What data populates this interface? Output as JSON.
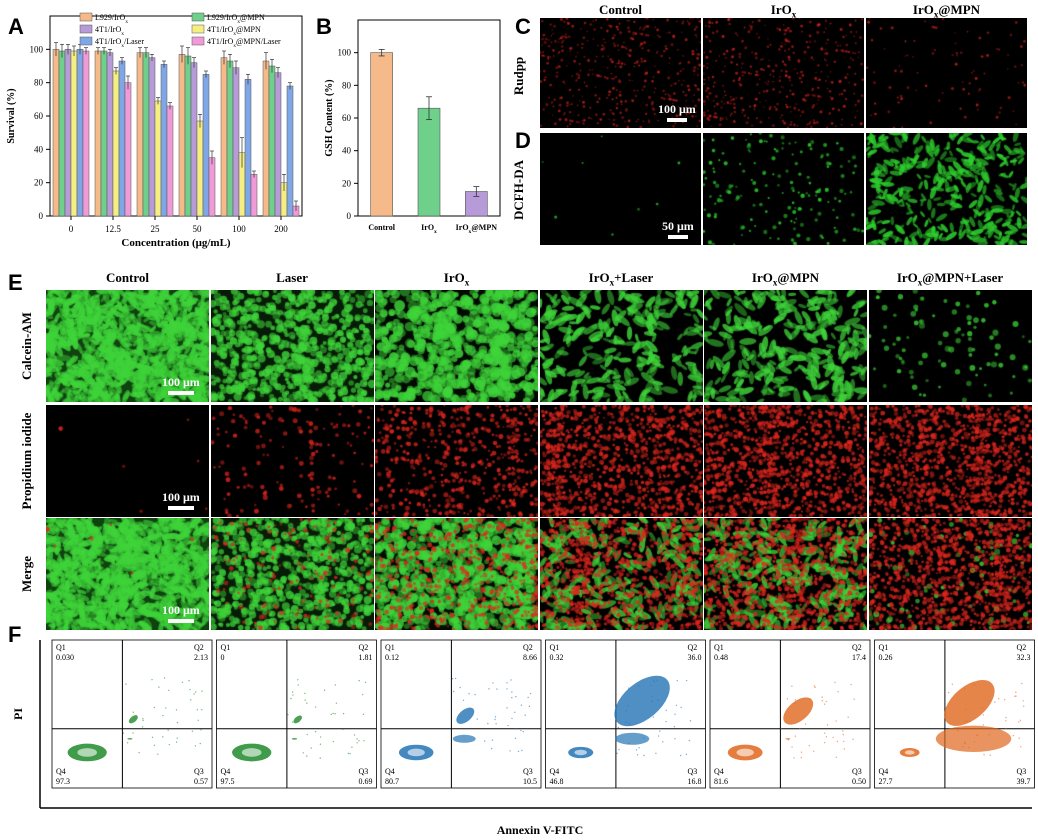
{
  "panels": {
    "A": "A",
    "B": "B",
    "C": "C",
    "D": "D",
    "E": "E",
    "F": "F"
  },
  "chart_data": [
    {
      "type": "bar",
      "panel": "A",
      "categories": [
        "0",
        "12.5",
        "25",
        "50",
        "100",
        "200"
      ],
      "xlabel": "Concentration (μg/mL)",
      "ylabel": "Survival (%)",
      "ylim": [
        0,
        120
      ],
      "yticks": [
        "0",
        "20",
        "40",
        "60",
        "80",
        "100"
      ],
      "series": [
        {
          "name": "L929/IrOx",
          "color": "#f5b98a",
          "values": [
            100,
            99,
            98,
            97,
            95,
            93
          ],
          "err": [
            4,
            2,
            3,
            5,
            4,
            5
          ]
        },
        {
          "name": "L929/IrOx@MPN",
          "color": "#6fd08c",
          "values": [
            99,
            99,
            98,
            96,
            93,
            90
          ],
          "err": [
            4,
            2,
            3,
            5,
            4,
            4
          ]
        },
        {
          "name": "4T1/IrOx",
          "color": "#b79ad8",
          "values": [
            100,
            98,
            95,
            92,
            89,
            86
          ],
          "err": [
            3,
            2,
            2,
            3,
            4,
            3
          ]
        },
        {
          "name": "4T1/IrOx@MPN",
          "color": "#f5ef80",
          "values": [
            99,
            87,
            69,
            57,
            38,
            20
          ],
          "err": [
            3,
            2,
            2,
            4,
            9,
            5
          ]
        },
        {
          "name": "4T1/IrOx/Laser",
          "color": "#7fa6e6",
          "values": [
            100,
            93,
            91,
            85,
            82,
            78
          ],
          "err": [
            3,
            2,
            2,
            2,
            3,
            2
          ]
        },
        {
          "name": "4T1/IrOx@MPN/Laser",
          "color": "#f09ad8",
          "values": [
            99,
            80,
            66,
            35,
            25,
            6
          ],
          "err": [
            2,
            4,
            2,
            4,
            2,
            3
          ]
        }
      ],
      "legend_placement": "top"
    },
    {
      "type": "bar",
      "panel": "B",
      "categories": [
        "Control",
        "IrOx",
        "IrOx@MPN"
      ],
      "values": [
        100,
        66,
        15
      ],
      "err": [
        2,
        7,
        3
      ],
      "colors": [
        "#f5b98a",
        "#6fd08c",
        "#b79ad8"
      ],
      "ylabel": "GSH Content (%)",
      "ylim": [
        0,
        120
      ],
      "yticks": [
        "0",
        "20",
        "40",
        "60",
        "80",
        "100"
      ]
    },
    {
      "type": "scatter",
      "panel": "F",
      "xlabel": "Annexin V-FITC",
      "ylabel": "PI",
      "plots": [
        {
          "q1": "0.030",
          "q2": "2.13",
          "q3": "0.57",
          "q4": "97.3",
          "color": "#1f8a2a"
        },
        {
          "q1": "0",
          "q2": "1.81",
          "q3": "0.69",
          "q4": "97.5",
          "color": "#1f8a2a"
        },
        {
          "q1": "0.12",
          "q2": "8.66",
          "q3": "10.5",
          "q4": "80.7",
          "color": "#2373b5"
        },
        {
          "q1": "0.32",
          "q2": "36.0",
          "q3": "16.8",
          "q4": "46.8",
          "color": "#2373b5"
        },
        {
          "q1": "0.48",
          "q2": "17.4",
          "q3": "0.50",
          "q4": "81.6",
          "color": "#e0661c"
        },
        {
          "q1": "0.26",
          "q2": "32.3",
          "q3": "39.7",
          "q4": "27.7",
          "color": "#e0661c"
        }
      ]
    }
  ],
  "panelC": {
    "columns": [
      "Control",
      "IrOx",
      "IrOx@MPN"
    ],
    "row_label_C": "Rudpp",
    "row_label_D": "DCFH-DA",
    "scale_C": "100 μm",
    "scale_D": "50 μm"
  },
  "panelE": {
    "columns": [
      "Control",
      "Laser",
      "IrOx",
      "IrOx+Laser",
      "IrOx@MPN",
      "IrOx@MPN+Laser"
    ],
    "rows": [
      "Calcein-AM",
      "Propidium iodide",
      "Merge"
    ],
    "scale": "100 μm"
  }
}
